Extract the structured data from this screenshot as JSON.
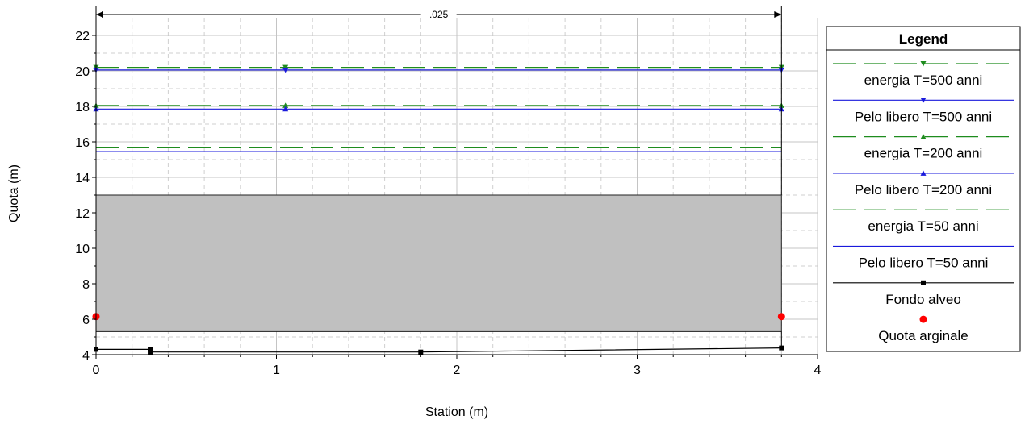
{
  "chart_data": {
    "type": "line",
    "xlabel": "Station (m)",
    "ylabel": "Quota (m)",
    "xlim": [
      0,
      4
    ],
    "ylim": [
      4,
      23
    ],
    "x_ticks": [
      0,
      1,
      2,
      3,
      4
    ],
    "y_ticks": [
      4,
      6,
      8,
      10,
      12,
      14,
      16,
      18,
      20,
      22
    ],
    "grid": true,
    "legend_position": "right",
    "legend_title": "Legend",
    "annotation": ".025",
    "annotation_span": [
      0,
      3.8
    ],
    "fill_region": {
      "x": [
        0,
        3.8
      ],
      "y": [
        5.3,
        13.0
      ],
      "color": "#c0c0c0"
    },
    "series": [
      {
        "name": "energia T=500 anni",
        "color": "#1e8c1e",
        "style": "dashed",
        "marker": "triangle-down",
        "x": [
          0,
          1.05,
          3.8
        ],
        "y": [
          20.2,
          20.2,
          20.2
        ]
      },
      {
        "name": "Pelo libero T=500 anni",
        "color": "#1a1adc",
        "style": "solid",
        "marker": "triangle-down",
        "x": [
          0,
          1.05,
          3.8
        ],
        "y": [
          20.05,
          20.05,
          20.05
        ]
      },
      {
        "name": "energia T=200 anni",
        "color": "#1e8c1e",
        "style": "dashed",
        "marker": "triangle-up",
        "x": [
          0,
          1.05,
          3.8
        ],
        "y": [
          18.05,
          18.05,
          18.05
        ]
      },
      {
        "name": "Pelo libero T=200 anni",
        "color": "#1a1adc",
        "style": "solid",
        "marker": "triangle-up",
        "x": [
          0,
          1.05,
          3.8
        ],
        "y": [
          17.85,
          17.85,
          17.85
        ]
      },
      {
        "name": "energia T=50 anni",
        "color": "#1e8c1e",
        "style": "dashed",
        "marker": "none",
        "x": [
          0,
          3.8
        ],
        "y": [
          15.7,
          15.7
        ]
      },
      {
        "name": "Pelo libero T=50 anni",
        "color": "#1a1adc",
        "style": "solid",
        "marker": "none",
        "x": [
          0,
          3.8
        ],
        "y": [
          15.45,
          15.45
        ]
      },
      {
        "name": "Fondo alveo",
        "color": "#000000",
        "style": "solid",
        "marker": "square",
        "x": [
          0,
          0.3,
          0.3,
          1.8,
          3.8
        ],
        "y": [
          4.3,
          4.3,
          4.15,
          4.15,
          4.38
        ]
      },
      {
        "name": "Quota arginale",
        "color": "#ff0000",
        "style": "none",
        "marker": "circle",
        "x": [
          0,
          3.8
        ],
        "y": [
          6.15,
          6.15
        ]
      }
    ]
  }
}
